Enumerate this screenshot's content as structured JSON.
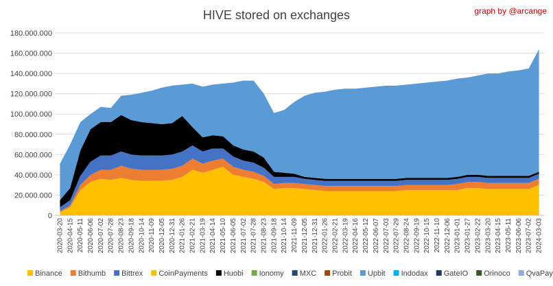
{
  "chart_data": {
    "type": "area",
    "stacked": true,
    "title": "HIVE stored on exchanges",
    "credit": "graph by @arcange",
    "xlabel": "",
    "ylabel": "",
    "ylim": [
      0,
      180000000
    ],
    "yticks": [
      0,
      20000000,
      40000000,
      60000000,
      80000000,
      100000000,
      120000000,
      140000000,
      160000000,
      180000000
    ],
    "ytick_labels": [
      "0",
      "20.000.000",
      "40.000.000",
      "60.000.000",
      "80.000.000",
      "100.000.000",
      "120.000.000",
      "140.000.000",
      "160.000.000",
      "180.000.000"
    ],
    "grid": true,
    "legend_position": "bottom",
    "x_tick_labels": [
      "2020-03-20",
      "2020-04-15",
      "2020-05-11",
      "2020-06-06",
      "2020-07-02",
      "2020-07-28",
      "2020-08-23",
      "2020-09-18",
      "2020-10-14",
      "2020-11-09",
      "2020-12-05",
      "2020-12-31",
      "2021-01-26",
      "2021-02-21",
      "2021-03-19",
      "2021-04-14",
      "2021-05-10",
      "2021-06-05",
      "2021-07-02",
      "2021-07-28",
      "2021-08-23",
      "2021-09-18",
      "2021-10-14",
      "2021-11-09",
      "2021-12-05",
      "2021-12-31",
      "2022-01-26",
      "2022-02-21",
      "2022-03-19",
      "2022-04-16",
      "2022-05-12",
      "2022-06-07",
      "2022-07-03",
      "2022-07-29",
      "2022-08-24",
      "2022-09-19",
      "2022-10-15",
      "2022-11-10",
      "2022-12-06",
      "2023-01-01",
      "2023-01-27",
      "2023-02-22",
      "2023-03-20",
      "2023-04-15",
      "2023-05-11",
      "2023-06-06",
      "2023-07-02",
      "2024-03-03"
    ],
    "x": [
      "2020-03-20",
      "2020-04-15",
      "2020-05-11",
      "2020-06-06",
      "2020-07-02",
      "2020-07-28",
      "2020-08-23",
      "2020-09-18",
      "2020-10-14",
      "2020-11-09",
      "2020-12-05",
      "2020-12-31",
      "2021-01-26",
      "2021-02-21",
      "2021-03-19",
      "2021-04-14",
      "2021-05-10",
      "2021-06-05",
      "2021-07-02",
      "2021-07-28",
      "2021-08-23",
      "2021-09-18",
      "2021-10-14",
      "2021-11-09",
      "2021-12-05",
      "2021-12-31",
      "2022-01-26",
      "2022-02-21",
      "2022-03-19",
      "2022-04-16",
      "2022-05-12",
      "2022-06-07",
      "2022-07-03",
      "2022-07-29",
      "2022-08-24",
      "2022-09-19",
      "2022-10-15",
      "2022-11-10",
      "2022-12-06",
      "2023-01-01",
      "2023-01-27",
      "2023-02-22",
      "2023-03-20",
      "2023-04-15",
      "2023-05-11",
      "2023-06-06",
      "2023-07-02",
      "2024-03-03"
    ],
    "series": [
      {
        "name": "Binance",
        "color": "#ffc000",
        "values": [
          3000000,
          8000000,
          25000000,
          33000000,
          36000000,
          35000000,
          37000000,
          35000000,
          34000000,
          34000000,
          34000000,
          35000000,
          38000000,
          45000000,
          42000000,
          45000000,
          48000000,
          40000000,
          38000000,
          36000000,
          33000000,
          26000000,
          27000000,
          27000000,
          26000000,
          25000000,
          24000000,
          24000000,
          24000000,
          24000000,
          24000000,
          24000000,
          24000000,
          24000000,
          25000000,
          25000000,
          25000000,
          25000000,
          25000000,
          25000000,
          27000000,
          27000000,
          26000000,
          26000000,
          26000000,
          26000000,
          26000000,
          30000000
        ]
      },
      {
        "name": "Bithumb",
        "color": "#ed7d31",
        "values": [
          1000000,
          2000000,
          5000000,
          7000000,
          9000000,
          10000000,
          12000000,
          11000000,
          11000000,
          11000000,
          11000000,
          11000000,
          11000000,
          11000000,
          9000000,
          9000000,
          8000000,
          8000000,
          7000000,
          7000000,
          6000000,
          5000000,
          5000000,
          5000000,
          5000000,
          5000000,
          5000000,
          5000000,
          5000000,
          5000000,
          5000000,
          5000000,
          5000000,
          5000000,
          5000000,
          5000000,
          5000000,
          5000000,
          5000000,
          6000000,
          6000000,
          6000000,
          6000000,
          6000000,
          6000000,
          6000000,
          6000000,
          6000000
        ]
      },
      {
        "name": "Bittrex",
        "color": "#4472c4",
        "values": [
          4000000,
          5000000,
          9000000,
          13000000,
          14000000,
          14000000,
          14000000,
          14000000,
          14000000,
          14000000,
          14000000,
          14000000,
          14000000,
          13000000,
          12000000,
          12000000,
          10000000,
          10000000,
          9000000,
          9000000,
          8000000,
          7000000,
          6000000,
          6000000,
          5000000,
          5000000,
          5000000,
          5000000,
          5000000,
          5000000,
          5000000,
          5000000,
          5000000,
          5000000,
          5000000,
          5000000,
          5000000,
          5000000,
          5000000,
          5000000,
          5000000,
          5000000,
          5000000,
          5000000,
          5000000,
          5000000,
          5000000,
          5000000
        ]
      },
      {
        "name": "CoinPayments",
        "color": "#ffc000",
        "values": [
          0,
          0,
          0,
          0,
          0,
          0,
          0,
          0,
          0,
          0,
          0,
          0,
          0,
          0,
          0,
          0,
          0,
          0,
          0,
          0,
          0,
          0,
          0,
          0,
          0,
          0,
          0,
          0,
          0,
          0,
          0,
          0,
          0,
          0,
          0,
          0,
          0,
          0,
          0,
          0,
          0,
          0,
          0,
          0,
          0,
          0,
          0,
          0
        ]
      },
      {
        "name": "Huobi",
        "color": "#000000",
        "values": [
          7000000,
          12000000,
          25000000,
          32000000,
          33000000,
          33000000,
          36000000,
          34000000,
          33000000,
          32000000,
          31000000,
          31000000,
          35000000,
          18000000,
          14000000,
          13000000,
          12000000,
          11000000,
          11000000,
          11000000,
          10000000,
          5000000,
          4000000,
          3000000,
          2000000,
          2000000,
          2000000,
          2000000,
          2000000,
          2000000,
          2000000,
          2000000,
          2000000,
          2000000,
          2000000,
          2000000,
          2000000,
          2000000,
          2000000,
          2000000,
          2000000,
          2000000,
          2000000,
          2000000,
          2000000,
          2000000,
          2000000,
          2000000
        ]
      },
      {
        "name": "Ionomy",
        "color": "#70ad47",
        "values": [
          0,
          0,
          0,
          0,
          0,
          0,
          0,
          0,
          0,
          0,
          0,
          0,
          0,
          0,
          0,
          0,
          0,
          0,
          0,
          0,
          0,
          0,
          0,
          0,
          0,
          0,
          0,
          0,
          0,
          0,
          0,
          0,
          0,
          0,
          0,
          0,
          0,
          0,
          0,
          0,
          0,
          0,
          0,
          0,
          0,
          0,
          0,
          0
        ]
      },
      {
        "name": "MXC",
        "color": "#264478",
        "values": [
          0,
          0,
          0,
          0,
          0,
          0,
          0,
          0,
          0,
          0,
          0,
          0,
          0,
          0,
          0,
          0,
          0,
          0,
          0,
          0,
          0,
          0,
          0,
          0,
          0,
          0,
          0,
          0,
          0,
          0,
          0,
          0,
          0,
          0,
          0,
          0,
          0,
          0,
          0,
          0,
          0,
          0,
          0,
          0,
          0,
          0,
          0,
          0
        ]
      },
      {
        "name": "Probit",
        "color": "#9e480e",
        "values": [
          0,
          0,
          0,
          0,
          0,
          0,
          0,
          0,
          0,
          0,
          0,
          0,
          0,
          0,
          0,
          0,
          0,
          0,
          0,
          0,
          0,
          0,
          0,
          0,
          0,
          0,
          0,
          0,
          0,
          0,
          0,
          0,
          0,
          0,
          0,
          0,
          0,
          0,
          0,
          0,
          0,
          0,
          0,
          0,
          0,
          0,
          0,
          0
        ]
      },
      {
        "name": "Upbit",
        "color": "#5b9bd5",
        "values": [
          36000000,
          43000000,
          28000000,
          15000000,
          15000000,
          14000000,
          19000000,
          25000000,
          29000000,
          32000000,
          36000000,
          37000000,
          31000000,
          43000000,
          50000000,
          50000000,
          52000000,
          62000000,
          68000000,
          70000000,
          63000000,
          58000000,
          62000000,
          71000000,
          80000000,
          84000000,
          86000000,
          88000000,
          89000000,
          89000000,
          90000000,
          91000000,
          92000000,
          92000000,
          92000000,
          93000000,
          94000000,
          95000000,
          96000000,
          97000000,
          96000000,
          98000000,
          101000000,
          101000000,
          103000000,
          104000000,
          106000000,
          121000000
        ]
      },
      {
        "name": "Indodax",
        "color": "#00b0f0",
        "values": [
          0,
          0,
          0,
          0,
          0,
          0,
          0,
          0,
          0,
          0,
          0,
          0,
          0,
          0,
          0,
          0,
          0,
          0,
          0,
          0,
          0,
          0,
          0,
          0,
          0,
          0,
          0,
          0,
          0,
          0,
          0,
          0,
          0,
          0,
          0,
          0,
          0,
          0,
          0,
          0,
          0,
          0,
          0,
          0,
          0,
          0,
          0,
          0
        ]
      },
      {
        "name": "GateIO",
        "color": "#203864",
        "values": [
          0,
          0,
          0,
          0,
          0,
          0,
          0,
          0,
          0,
          0,
          0,
          0,
          0,
          0,
          0,
          0,
          0,
          0,
          0,
          0,
          0,
          0,
          0,
          0,
          0,
          0,
          0,
          0,
          0,
          0,
          0,
          0,
          0,
          0,
          0,
          0,
          0,
          0,
          0,
          0,
          0,
          0,
          0,
          0,
          0,
          0,
          0,
          0
        ]
      },
      {
        "name": "Orinoco",
        "color": "#375623",
        "values": [
          0,
          0,
          0,
          0,
          0,
          0,
          0,
          0,
          0,
          0,
          0,
          0,
          0,
          0,
          0,
          0,
          0,
          0,
          0,
          0,
          0,
          0,
          0,
          0,
          0,
          0,
          0,
          0,
          0,
          0,
          0,
          0,
          0,
          0,
          0,
          0,
          0,
          0,
          0,
          0,
          0,
          0,
          0,
          0,
          0,
          0,
          0,
          0
        ]
      },
      {
        "name": "QvaPay",
        "color": "#8faadc",
        "values": [
          0,
          0,
          0,
          0,
          0,
          0,
          0,
          0,
          0,
          0,
          0,
          0,
          0,
          0,
          0,
          0,
          0,
          0,
          0,
          0,
          0,
          0,
          0,
          0,
          0,
          0,
          0,
          0,
          0,
          0,
          0,
          0,
          0,
          0,
          0,
          0,
          0,
          0,
          0,
          0,
          0,
          0,
          0,
          0,
          0,
          0,
          0,
          0
        ]
      }
    ]
  }
}
